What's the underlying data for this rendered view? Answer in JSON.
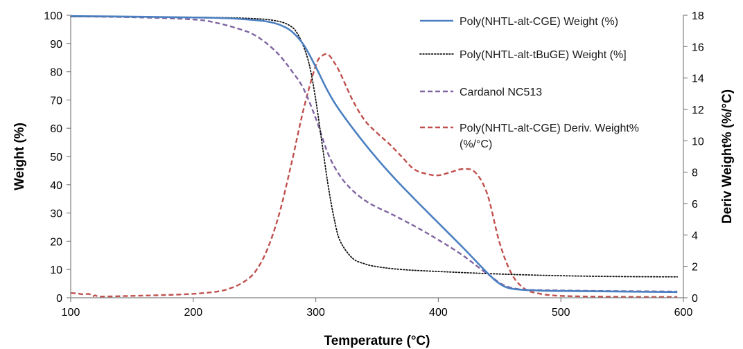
{
  "chart_data": {
    "type": "line",
    "xlabel": "Temperature (°C)",
    "ylabel": "Weight (%)",
    "y2label": "Deriv Weight% (%/°C)",
    "xlim": [
      100,
      600
    ],
    "ylim": [
      0,
      100
    ],
    "y2lim": [
      0,
      18
    ],
    "x_ticks": [
      "100",
      "200",
      "300",
      "400",
      "500",
      "600"
    ],
    "y_ticks": [
      "0",
      "10",
      "20",
      "30",
      "40",
      "50",
      "60",
      "70",
      "80",
      "90",
      "100"
    ],
    "y2_ticks": [
      "0",
      "2",
      "4",
      "6",
      "8",
      "10",
      "12",
      "14",
      "16",
      "18"
    ],
    "grid": false,
    "legend_position": "top-right, inside plot",
    "series": [
      {
        "name": "Poly(NHTL-alt-CGE) Weight (%)",
        "axis": "left",
        "style": "solid",
        "color": "#4a7fc1",
        "x": [
          100,
          150,
          200,
          230,
          250,
          260,
          270,
          280,
          290,
          300,
          310,
          320,
          340,
          360,
          380,
          400,
          420,
          440,
          450,
          460,
          480,
          500,
          550,
          595
        ],
        "y": [
          99.7,
          99.5,
          99.2,
          98.9,
          98.3,
          97.8,
          96.7,
          94.4,
          89.6,
          81.7,
          73.0,
          66.0,
          54.5,
          44.3,
          35.2,
          26.5,
          17.8,
          8.8,
          5.0,
          3.2,
          2.6,
          2.4,
          2.2,
          2.0
        ]
      },
      {
        "name": "Poly(NHTL-alt-tBuGE) Weight (%]",
        "axis": "left",
        "style": "dotted",
        "color": "#111111",
        "x": [
          100,
          200,
          250,
          270,
          280,
          285,
          290,
          295,
          300,
          305,
          310,
          315,
          320,
          330,
          340,
          350,
          370,
          400,
          450,
          500,
          550,
          595
        ],
        "y": [
          99.5,
          99.3,
          98.8,
          97.8,
          96.0,
          93.5,
          89.0,
          82.0,
          70.0,
          55.0,
          40.0,
          28.0,
          20.0,
          14.0,
          12.0,
          11.0,
          10.0,
          9.3,
          8.4,
          7.8,
          7.5,
          7.4
        ]
      },
      {
        "name": "Cardanol NC513",
        "axis": "left",
        "style": "dashed",
        "color": "#8064a2",
        "x": [
          100,
          150,
          200,
          220,
          240,
          250,
          260,
          270,
          280,
          290,
          300,
          310,
          320,
          330,
          340,
          350,
          360,
          380,
          400,
          420,
          440,
          460,
          500,
          595
        ],
        "y": [
          99.6,
          99.3,
          98.5,
          97.2,
          94.8,
          93.0,
          90.0,
          86.0,
          80.5,
          74.0,
          63.5,
          51.0,
          43.0,
          38.0,
          34.5,
          32.0,
          30.0,
          25.5,
          20.5,
          15.0,
          8.5,
          3.5,
          2.6,
          2.2
        ]
      },
      {
        "name": "Poly(NHTL-alt-CGE) Deriv. Weight% (%/°C)",
        "axis": "right",
        "style": "dashed",
        "color": "#c0504d",
        "x": [
          100,
          105,
          110,
          115,
          118,
          120,
          125,
          150,
          175,
          200,
          220,
          230,
          240,
          250,
          260,
          270,
          280,
          290,
          300,
          305,
          310,
          315,
          320,
          330,
          340,
          350,
          360,
          370,
          380,
          390,
          400,
          410,
          420,
          430,
          440,
          450,
          460,
          470,
          480,
          500,
          550,
          595
        ],
        "y": [
          0.3,
          0.28,
          0.22,
          0.24,
          0.1,
          0.15,
          0.08,
          0.12,
          0.17,
          0.25,
          0.4,
          0.6,
          0.95,
          1.6,
          3.0,
          5.3,
          8.5,
          12.0,
          14.8,
          15.4,
          15.5,
          15.0,
          14.3,
          12.6,
          11.3,
          10.5,
          9.8,
          9.0,
          8.2,
          7.9,
          7.8,
          8.0,
          8.2,
          8.0,
          6.6,
          3.5,
          1.5,
          0.6,
          0.3,
          0.12,
          0.06,
          0.05
        ]
      }
    ]
  }
}
